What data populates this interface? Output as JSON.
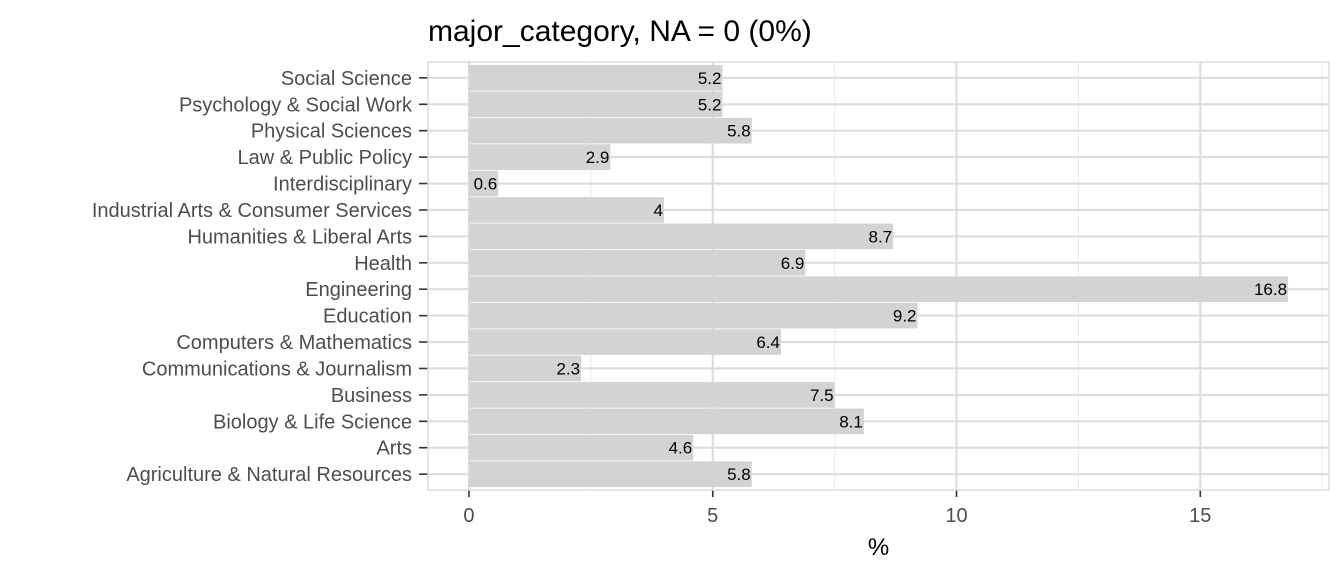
{
  "chart_data": {
    "type": "bar",
    "orientation": "horizontal",
    "title": "major_category, NA = 0 (0%)",
    "xlabel": "%",
    "ylabel": "",
    "categories": [
      "Agriculture & Natural Resources",
      "Arts",
      "Biology & Life Science",
      "Business",
      "Communications & Journalism",
      "Computers & Mathematics",
      "Education",
      "Engineering",
      "Health",
      "Humanities & Liberal Arts",
      "Industrial Arts & Consumer Services",
      "Interdisciplinary",
      "Law & Public Policy",
      "Physical Sciences",
      "Psychology & Social Work",
      "Social Science"
    ],
    "values": [
      5.8,
      4.6,
      8.1,
      7.5,
      2.3,
      6.4,
      9.2,
      16.8,
      6.9,
      8.7,
      4,
      0.6,
      2.9,
      5.8,
      5.2,
      5.2
    ],
    "value_labels": [
      "5.8",
      "4.6",
      "8.1",
      "7.5",
      "2.3",
      "6.4",
      "9.2",
      "16.8",
      "6.9",
      "8.7",
      "4",
      "0.6",
      "2.9",
      "5.8",
      "5.2",
      "5.2"
    ],
    "xlim": [
      -0.84,
      17.64
    ],
    "xticks": [
      0,
      5,
      10,
      15
    ],
    "xtick_labels": [
      "0",
      "5",
      "10",
      "15"
    ],
    "grid": true,
    "colors": {
      "bar": "#d3d3d3",
      "grid_major": "#dcdcdc",
      "grid_minor": "#ececec",
      "panel_border": "#dcdcdc",
      "text": "#4d4d4d"
    }
  }
}
